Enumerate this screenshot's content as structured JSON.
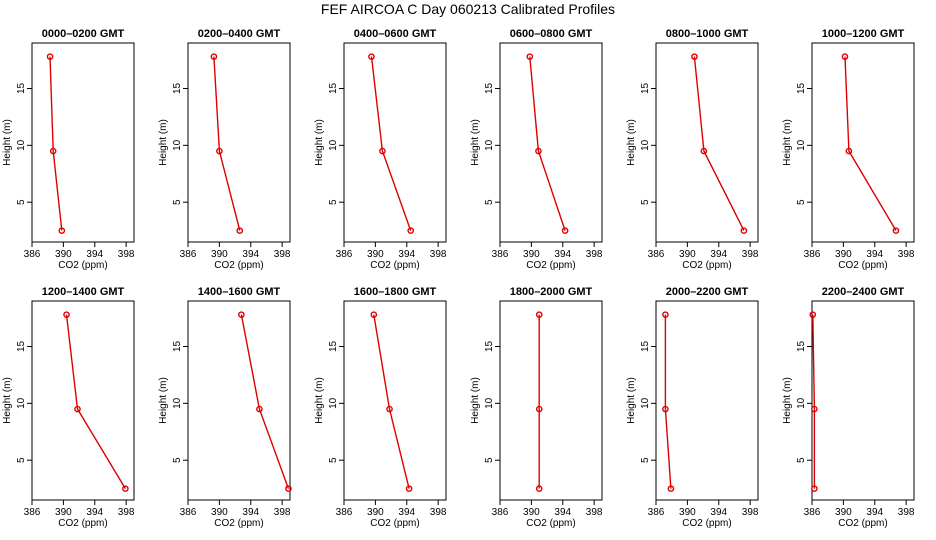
{
  "title": "FEF AIRCOA C  Day 060213  Calibrated Profiles",
  "colors": {
    "series": "#dd0000",
    "axes": "#000000"
  },
  "chart_data": {
    "type": "line",
    "xlabel": "CO2 (ppm)",
    "ylabel": "Height (m)",
    "xlim": [
      386,
      399
    ],
    "ylim": [
      1.5,
      19
    ],
    "x_ticks": [
      386,
      390,
      394,
      398
    ],
    "x_tick_labels": [
      "386",
      "390",
      "394",
      "398"
    ],
    "y_ticks": [
      5,
      10,
      15
    ],
    "y_tick_labels": [
      "5",
      "10",
      "15"
    ],
    "heights": [
      17.8,
      9.5,
      2.5
    ],
    "panels": [
      {
        "title": "0000–0200 GMT",
        "co2": [
          388.3,
          388.7,
          389.8
        ]
      },
      {
        "title": "0200–0400 GMT",
        "co2": [
          389.3,
          390.0,
          392.6
        ]
      },
      {
        "title": "0400–0600 GMT",
        "co2": [
          389.5,
          390.9,
          394.5
        ]
      },
      {
        "title": "0600–0800 GMT",
        "co2": [
          389.8,
          390.9,
          394.3
        ]
      },
      {
        "title": "0800–1000 GMT",
        "co2": [
          390.9,
          392.1,
          397.2
        ]
      },
      {
        "title": "1000–1200 GMT",
        "co2": [
          390.2,
          390.7,
          396.7
        ]
      },
      {
        "title": "1200–1400 GMT",
        "co2": [
          390.4,
          391.8,
          397.9
        ]
      },
      {
        "title": "1400–1600 GMT",
        "co2": [
          392.8,
          395.1,
          398.8
        ]
      },
      {
        "title": "1600–1800 GMT",
        "co2": [
          389.8,
          391.8,
          394.3
        ]
      },
      {
        "title": "1800–2000 GMT",
        "co2": [
          391.0,
          391.0,
          391.0
        ]
      },
      {
        "title": "2000–2200 GMT",
        "co2": [
          387.2,
          387.2,
          387.9
        ]
      },
      {
        "title": "2200–2400 GMT",
        "co2": [
          386.1,
          386.3,
          386.3
        ]
      }
    ]
  }
}
